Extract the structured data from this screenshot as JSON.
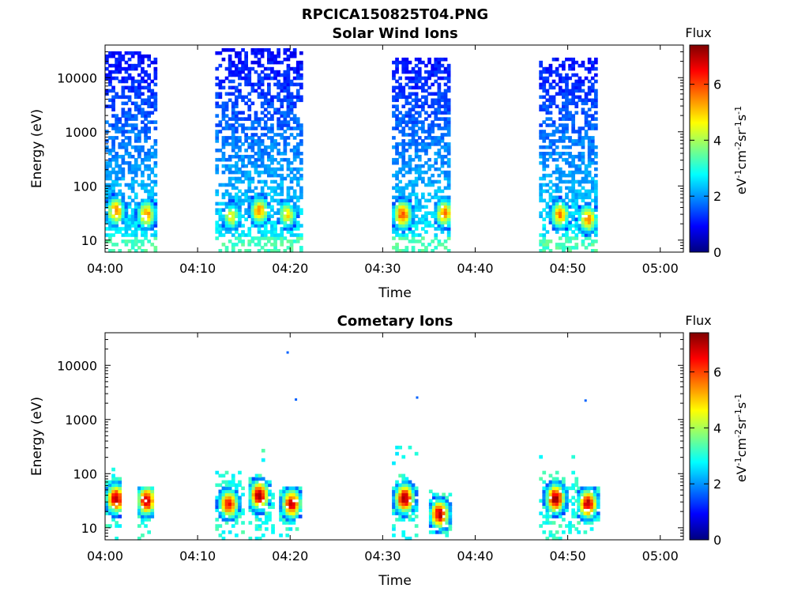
{
  "figure_title": "RPCICA150825T04.PNG",
  "colorbar": {
    "title": "Flux",
    "ticks": [
      "0",
      "2",
      "4",
      "6"
    ],
    "label_prefix": "eV",
    "label_parts": [
      {
        "t": "eV",
        "sup": false
      },
      {
        "t": "-1",
        "sup": true
      },
      {
        "t": "cm",
        "sup": false
      },
      {
        "t": "-2",
        "sup": true
      },
      {
        "t": "sr",
        "sup": false
      },
      {
        "t": "-1",
        "sup": true
      },
      {
        "t": "s",
        "sup": false
      },
      {
        "t": "-1",
        "sup": true
      }
    ],
    "range": [
      0,
      7.4
    ],
    "colormap": "jet"
  },
  "chart_data": [
    {
      "type": "heatmap",
      "title": "Solar Wind Ions",
      "xlabel": "Time",
      "ylabel": "Energy (eV)",
      "x_ticks": [
        "04:00",
        "04:10",
        "04:20",
        "04:30",
        "04:40",
        "04:50",
        "05:00"
      ],
      "y_ticks": [
        "10",
        "100",
        "1000",
        "10000"
      ],
      "y_scale": "log",
      "ylim": [
        6,
        40000
      ],
      "xlim_minutes": [
        0,
        62.5
      ],
      "bursts": [
        {
          "start": 0.0,
          "end": 5.3,
          "peaks": [
            [
              1.0,
              35,
              5.5
            ],
            [
              4.3,
              30,
              5.5
            ]
          ],
          "emax": 30000
        },
        {
          "start": 11.9,
          "end": 21.2,
          "peaks": [
            [
              13.5,
              28,
              4.5
            ],
            [
              16.5,
              35,
              5.5
            ],
            [
              19.5,
              30,
              4.8
            ]
          ],
          "emax": 35000
        },
        {
          "start": 31.0,
          "end": 37.2,
          "peaks": [
            [
              32.0,
              30,
              6.0
            ],
            [
              36.5,
              32,
              5.5
            ]
          ],
          "emax": 25000
        },
        {
          "start": 46.9,
          "end": 53.2,
          "peaks": [
            [
              49.0,
              30,
              5.5
            ],
            [
              52.0,
              25,
              5.5
            ]
          ],
          "emax": 22000
        }
      ]
    },
    {
      "type": "heatmap",
      "title": "Cometary Ions",
      "xlabel": "Time",
      "ylabel": "Energy (eV)",
      "x_ticks": [
        "04:00",
        "04:10",
        "04:20",
        "04:30",
        "04:40",
        "04:50",
        "05:00"
      ],
      "y_ticks": [
        "10",
        "100",
        "1000",
        "10000"
      ],
      "y_scale": "log",
      "ylim": [
        6,
        40000
      ],
      "xlim_minutes": [
        0,
        62.5
      ],
      "bursts": [
        {
          "start": 0.0,
          "end": 1.7,
          "peaks": [
            [
              1.0,
              35,
              7.0
            ]
          ],
          "emax": 160
        },
        {
          "start": 3.5,
          "end": 5.2,
          "peaks": [
            [
              4.3,
              32,
              7.0
            ]
          ],
          "emax": 60
        },
        {
          "start": 11.9,
          "end": 14.8,
          "peaks": [
            [
              13.2,
              28,
              6.5
            ]
          ],
          "emax": 120
        },
        {
          "start": 15.5,
          "end": 18.3,
          "peaks": [
            [
              16.5,
              40,
              7.2
            ]
          ],
          "emax": 400
        },
        {
          "start": 18.8,
          "end": 21.2,
          "peaks": [
            [
              20.0,
              28,
              6.8
            ]
          ],
          "emax": 60
        },
        {
          "start": 31.0,
          "end": 33.8,
          "peaks": [
            [
              32.2,
              35,
              7.2
            ]
          ],
          "emax": 350
        },
        {
          "start": 35.0,
          "end": 37.2,
          "peaks": [
            [
              36.0,
              18,
              7.0
            ]
          ],
          "emax": 50
        },
        {
          "start": 46.9,
          "end": 50.8,
          "peaks": [
            [
              48.5,
              35,
              7.2
            ]
          ],
          "emax": 220
        },
        {
          "start": 51.0,
          "end": 53.2,
          "peaks": [
            [
              52.0,
              28,
              7.0
            ]
          ],
          "emax": 60
        }
      ],
      "isolated_points_minutes_eV": [
        [
          19.6,
          17000
        ],
        [
          20.5,
          2300
        ],
        [
          33.6,
          2500
        ],
        [
          51.8,
          2200
        ]
      ]
    }
  ]
}
